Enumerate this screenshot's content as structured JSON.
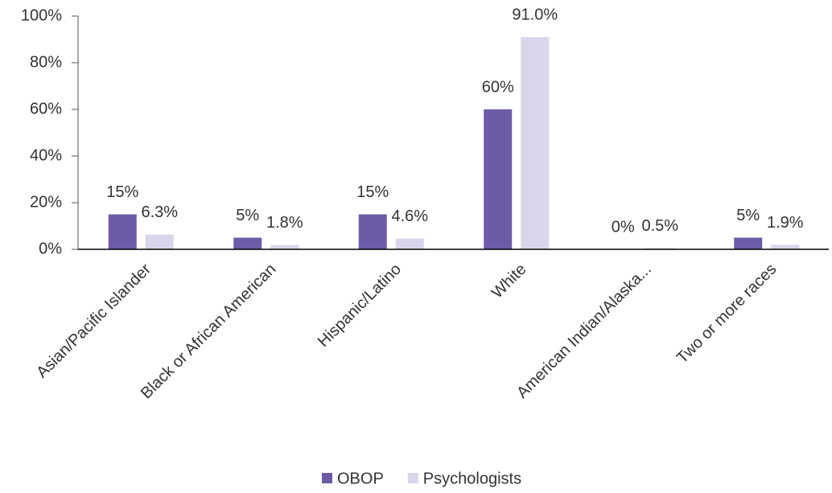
{
  "chart_data": {
    "type": "bar",
    "categories": [
      "Asian/Pacific Islander",
      "Black or African American",
      "Hispanic/Latino",
      "White",
      "American Indian/Alaska...",
      "Two or more races"
    ],
    "series": [
      {
        "name": "OBOP",
        "color": "#6e5ba8",
        "values": [
          15,
          5,
          15,
          60,
          0,
          5
        ],
        "value_labels": [
          "15%",
          "5%",
          "15%",
          "60%",
          "0%",
          "5%"
        ]
      },
      {
        "name": "Psychologists",
        "color": "#d9d5ea",
        "values": [
          6.3,
          1.8,
          4.6,
          91.0,
          0.5,
          1.9
        ],
        "value_labels": [
          "6.3%",
          "1.8%",
          "4.6%",
          "91.0%",
          "0.5%",
          "1.9%"
        ]
      }
    ],
    "ylim": [
      0,
      100
    ],
    "yticks": [
      {
        "value": 0,
        "label": "0%"
      },
      {
        "value": 20,
        "label": "20%"
      },
      {
        "value": 40,
        "label": "40%"
      },
      {
        "value": 60,
        "label": "60%"
      },
      {
        "value": 80,
        "label": "80%"
      },
      {
        "value": 100,
        "label": "100%"
      }
    ],
    "grid": false,
    "legend": "bottom"
  }
}
